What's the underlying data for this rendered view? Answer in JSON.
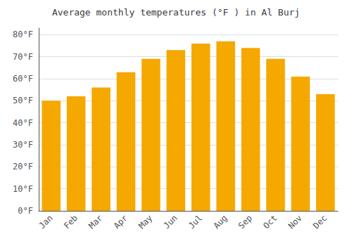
{
  "chart_data": {
    "type": "bar",
    "title": "Average monthly temperatures (°F ) in Al Burj",
    "categories": [
      "Jan",
      "Feb",
      "Mar",
      "Apr",
      "May",
      "Jun",
      "Jul",
      "Aug",
      "Sep",
      "Oct",
      "Nov",
      "Dec"
    ],
    "values": [
      50,
      52,
      56,
      63,
      69,
      73,
      76,
      77,
      74,
      69,
      61,
      53
    ],
    "color": "#F5A800",
    "ylim": [
      0,
      83
    ],
    "yticks": [
      {
        "value": 0,
        "label": "0°F"
      },
      {
        "value": 10,
        "label": "10°F"
      },
      {
        "value": 20,
        "label": "20°F"
      },
      {
        "value": 30,
        "label": "30°F"
      },
      {
        "value": 40,
        "label": "40°F"
      },
      {
        "value": 50,
        "label": "50°F"
      },
      {
        "value": 60,
        "label": "60°F"
      },
      {
        "value": 70,
        "label": "70°F"
      },
      {
        "value": 80,
        "label": "80°F"
      }
    ],
    "grid": true
  }
}
